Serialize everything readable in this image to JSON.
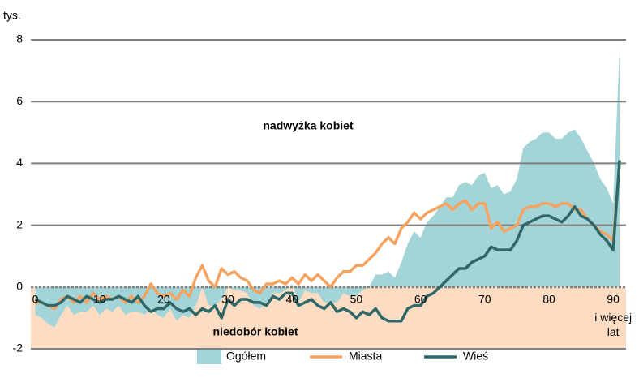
{
  "chart_data": {
    "type": "line",
    "unit_label": "tys.",
    "annotations": [
      "nadwyżka kobiet",
      "niedobór kobiet"
    ],
    "x_last_label": "i więcej lat",
    "x": [
      0,
      1,
      2,
      3,
      4,
      5,
      6,
      7,
      8,
      9,
      10,
      11,
      12,
      13,
      14,
      15,
      16,
      17,
      18,
      19,
      20,
      21,
      22,
      23,
      24,
      25,
      26,
      27,
      28,
      29,
      30,
      31,
      32,
      33,
      34,
      35,
      36,
      37,
      38,
      39,
      40,
      41,
      42,
      43,
      44,
      45,
      46,
      47,
      48,
      49,
      50,
      51,
      52,
      53,
      54,
      55,
      56,
      57,
      58,
      59,
      60,
      61,
      62,
      63,
      64,
      65,
      66,
      67,
      68,
      69,
      70,
      71,
      72,
      73,
      74,
      75,
      76,
      77,
      78,
      79,
      80,
      81,
      82,
      83,
      84,
      85,
      86,
      87,
      88,
      89,
      90,
      91
    ],
    "series": [
      {
        "name": "Ogółem",
        "kind": "area",
        "color": "#a3d4d8",
        "values": [
          -0.9,
          -1.0,
          -1.2,
          -1.3,
          -0.9,
          -0.6,
          -0.9,
          -0.8,
          -0.8,
          -0.6,
          -0.9,
          -0.7,
          -0.8,
          -0.6,
          -0.9,
          -0.8,
          -0.8,
          -0.9,
          -0.7,
          -0.9,
          -1.0,
          -0.7,
          -1.1,
          -0.9,
          -1.0,
          -0.6,
          0.0,
          -0.6,
          -0.6,
          -0.4,
          0.0,
          -0.1,
          -0.1,
          -0.2,
          -0.6,
          -0.7,
          -0.5,
          -0.2,
          -0.2,
          -0.1,
          0.1,
          -0.5,
          -0.1,
          -0.2,
          -0.2,
          -0.5,
          -0.5,
          -0.5,
          -0.2,
          -0.3,
          -0.3,
          -0.1,
          0.0,
          0.4,
          0.4,
          0.5,
          0.3,
          0.8,
          1.4,
          1.8,
          1.6,
          2.1,
          2.3,
          2.6,
          2.9,
          2.9,
          3.3,
          3.4,
          3.3,
          3.6,
          3.7,
          3.2,
          3.3,
          3.0,
          3.1,
          3.5,
          4.5,
          4.7,
          4.8,
          5.0,
          5.0,
          4.8,
          4.8,
          5.0,
          5.1,
          4.8,
          4.4,
          4.0,
          3.5,
          3.2,
          2.7,
          7.7
        ]
      },
      {
        "name": "Miasta",
        "kind": "line",
        "color": "#f4a460",
        "values": [
          -0.5,
          -0.5,
          -0.6,
          -0.7,
          -0.4,
          -0.3,
          -0.5,
          -0.3,
          -0.5,
          -0.2,
          -0.4,
          -0.3,
          -0.4,
          -0.3,
          -0.5,
          -0.3,
          -0.5,
          -0.3,
          0.1,
          -0.2,
          -0.3,
          -0.2,
          -0.4,
          -0.1,
          -0.3,
          0.3,
          0.7,
          0.2,
          0.0,
          0.6,
          0.4,
          0.5,
          0.3,
          0.2,
          -0.1,
          -0.2,
          0.1,
          0.1,
          0.2,
          0.1,
          0.3,
          0.1,
          0.4,
          0.2,
          0.4,
          0.2,
          0.0,
          0.3,
          0.5,
          0.5,
          0.7,
          0.7,
          0.9,
          1.1,
          1.4,
          1.6,
          1.4,
          1.9,
          2.1,
          2.4,
          2.2,
          2.4,
          2.5,
          2.6,
          2.7,
          2.5,
          2.7,
          2.8,
          2.5,
          2.7,
          2.7,
          1.9,
          2.1,
          1.8,
          1.9,
          2.0,
          2.5,
          2.6,
          2.6,
          2.7,
          2.7,
          2.6,
          2.7,
          2.7,
          2.5,
          2.5,
          2.2,
          2.0,
          1.8,
          1.7,
          1.5,
          4.0
        ]
      },
      {
        "name": "Wieś",
        "kind": "line",
        "color": "#2f6868",
        "values": [
          -0.4,
          -0.5,
          -0.6,
          -0.6,
          -0.5,
          -0.3,
          -0.4,
          -0.5,
          -0.3,
          -0.4,
          -0.5,
          -0.4,
          -0.4,
          -0.3,
          -0.4,
          -0.5,
          -0.3,
          -0.6,
          -0.8,
          -0.7,
          -0.7,
          -0.5,
          -0.7,
          -0.8,
          -0.7,
          -0.9,
          -0.7,
          -0.8,
          -0.6,
          -1.0,
          -0.4,
          -0.6,
          -0.4,
          -0.4,
          -0.5,
          -0.5,
          -0.6,
          -0.3,
          -0.4,
          -0.2,
          -0.2,
          -0.6,
          -0.5,
          -0.4,
          -0.6,
          -0.7,
          -0.5,
          -0.8,
          -0.7,
          -0.8,
          -1.0,
          -0.8,
          -0.9,
          -0.7,
          -1.0,
          -1.1,
          -1.1,
          -1.1,
          -0.7,
          -0.6,
          -0.6,
          -0.3,
          -0.2,
          0.0,
          0.2,
          0.4,
          0.6,
          0.6,
          0.8,
          0.9,
          1.0,
          1.3,
          1.2,
          1.2,
          1.2,
          1.5,
          2.0,
          2.1,
          2.2,
          2.3,
          2.3,
          2.2,
          2.1,
          2.3,
          2.6,
          2.3,
          2.2,
          2.0,
          1.7,
          1.5,
          1.2,
          4.1
        ]
      }
    ],
    "xlim": [
      -0.7,
      92
    ],
    "xticks": [
      0,
      10,
      20,
      30,
      40,
      50,
      60,
      70,
      80,
      90
    ],
    "ylim": [
      -2,
      8
    ],
    "yticks": [
      -2,
      0,
      2,
      4,
      6,
      8
    ],
    "grid": true,
    "negative_band_color": "#fcdcc3",
    "legend": "bottom"
  }
}
